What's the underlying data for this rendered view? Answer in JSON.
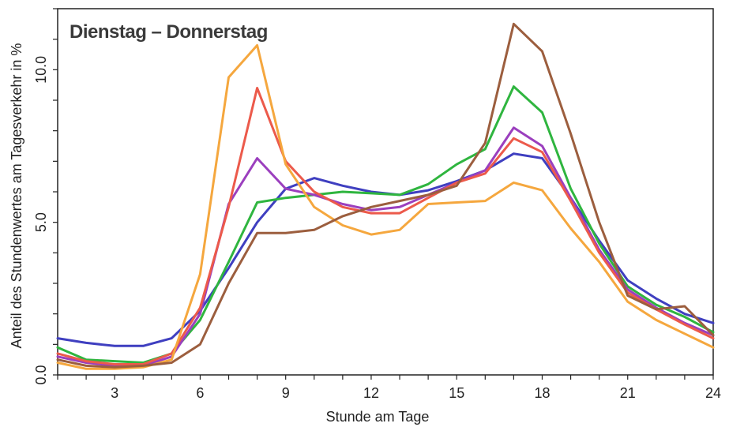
{
  "chart_data": {
    "type": "line",
    "title": "Dienstag – Donnerstag",
    "xlabel": "Stunde am Tage",
    "ylabel": "Anteil des Stundenwertes am Tagesverkehr in %",
    "xlim": [
      1,
      24
    ],
    "ylim": [
      0,
      12
    ],
    "xticks": [
      3,
      6,
      9,
      12,
      15,
      18,
      21,
      24
    ],
    "yticks": [
      0.0,
      5.0,
      10.0
    ],
    "ytick_labels": [
      "0.0",
      "5.0",
      "10.0"
    ],
    "grid": false,
    "x": [
      1,
      2,
      3,
      4,
      5,
      6,
      7,
      8,
      9,
      10,
      11,
      12,
      13,
      14,
      15,
      16,
      17,
      18,
      19,
      20,
      21,
      22,
      23,
      24
    ],
    "series": [
      {
        "color": "#3f3fc0",
        "values": [
          1.2,
          1.05,
          0.95,
          0.95,
          1.2,
          2.1,
          3.5,
          5.0,
          6.1,
          6.45,
          6.2,
          6.0,
          5.9,
          6.05,
          6.35,
          6.7,
          7.25,
          7.1,
          5.8,
          4.4,
          3.1,
          2.5,
          2.0,
          1.7
        ]
      },
      {
        "color": "#2fb53f",
        "values": [
          0.9,
          0.5,
          0.45,
          0.4,
          0.7,
          1.8,
          3.7,
          5.65,
          5.8,
          5.9,
          6.0,
          5.95,
          5.9,
          6.25,
          6.9,
          7.4,
          9.45,
          8.6,
          6.1,
          4.3,
          2.9,
          2.3,
          1.9,
          1.4
        ]
      },
      {
        "color": "#9b3fbe",
        "values": [
          0.6,
          0.4,
          0.3,
          0.3,
          0.6,
          2.0,
          5.6,
          7.1,
          6.1,
          5.9,
          5.6,
          5.4,
          5.5,
          5.9,
          6.3,
          6.7,
          8.1,
          7.5,
          5.8,
          4.1,
          2.8,
          2.2,
          1.7,
          1.3
        ]
      },
      {
        "color": "#ec5a4b",
        "values": [
          0.7,
          0.45,
          0.35,
          0.35,
          0.7,
          2.2,
          5.5,
          9.4,
          7.0,
          6.0,
          5.5,
          5.3,
          5.3,
          5.8,
          6.3,
          6.6,
          7.75,
          7.3,
          5.7,
          4.0,
          2.7,
          2.15,
          1.65,
          1.2
        ]
      },
      {
        "color": "#f5a73e",
        "values": [
          0.4,
          0.2,
          0.2,
          0.25,
          0.5,
          3.3,
          9.75,
          10.8,
          6.9,
          5.5,
          4.9,
          4.6,
          4.75,
          5.6,
          5.65,
          5.7,
          6.3,
          6.05,
          4.8,
          3.7,
          2.4,
          1.8,
          1.35,
          0.9
        ]
      },
      {
        "color": "#9c5e3e",
        "values": [
          0.5,
          0.3,
          0.25,
          0.3,
          0.4,
          1.0,
          3.0,
          4.65,
          4.65,
          4.75,
          5.2,
          5.5,
          5.7,
          5.9,
          6.2,
          7.6,
          11.5,
          10.6,
          7.9,
          5.0,
          2.6,
          2.15,
          2.25,
          1.3
        ]
      }
    ]
  }
}
